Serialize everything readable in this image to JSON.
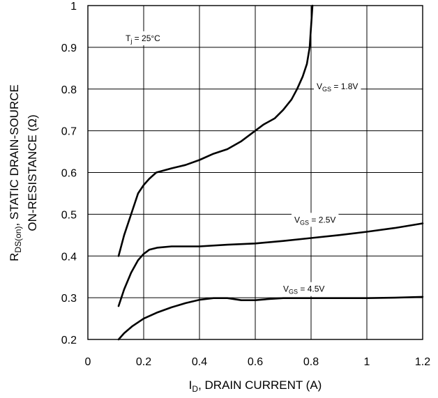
{
  "chart_data": {
    "type": "line",
    "xlabel": {
      "main": "I",
      "sub": "D",
      "rest": ", DRAIN CURRENT (A)"
    },
    "ylabel": {
      "line1_main": "R",
      "line1_sub": "DS(on)",
      "line1_rest": ", STATIC DRAIN-SOURCE",
      "line2": "ON-RESISTANCE (Ω)"
    },
    "xlim": [
      0,
      1.2
    ],
    "ylim": [
      0.2,
      1.0
    ],
    "xticks": [
      "0",
      "0.2",
      "0.4",
      "0.6",
      "0.8",
      "1",
      "1.2"
    ],
    "yticks": [
      "0.2",
      "0.3",
      "0.4",
      "0.5",
      "0.6",
      "0.7",
      "0.8",
      "0.9",
      "1"
    ],
    "grid": true,
    "annotations": [
      {
        "main": "T",
        "sub": "j",
        "rest": " = 25°C"
      }
    ],
    "series": [
      {
        "label": {
          "main": "V",
          "sub": "GS",
          "rest": " = 1.8V"
        },
        "points": [
          [
            0.11,
            0.4
          ],
          [
            0.13,
            0.45
          ],
          [
            0.155,
            0.5
          ],
          [
            0.18,
            0.55
          ],
          [
            0.2,
            0.57
          ],
          [
            0.22,
            0.585
          ],
          [
            0.245,
            0.6
          ],
          [
            0.3,
            0.61
          ],
          [
            0.35,
            0.618
          ],
          [
            0.4,
            0.63
          ],
          [
            0.45,
            0.645
          ],
          [
            0.5,
            0.656
          ],
          [
            0.55,
            0.675
          ],
          [
            0.6,
            0.7
          ],
          [
            0.63,
            0.715
          ],
          [
            0.67,
            0.73
          ],
          [
            0.7,
            0.75
          ],
          [
            0.73,
            0.775
          ],
          [
            0.75,
            0.8
          ],
          [
            0.77,
            0.83
          ],
          [
            0.785,
            0.86
          ],
          [
            0.795,
            0.9
          ],
          [
            0.8,
            0.95
          ],
          [
            0.805,
            1.0
          ]
        ]
      },
      {
        "label": {
          "main": "V",
          "sub": "GS",
          "rest": " = 2.5V"
        },
        "points": [
          [
            0.11,
            0.28
          ],
          [
            0.13,
            0.32
          ],
          [
            0.155,
            0.36
          ],
          [
            0.18,
            0.39
          ],
          [
            0.2,
            0.405
          ],
          [
            0.22,
            0.415
          ],
          [
            0.25,
            0.42
          ],
          [
            0.3,
            0.423
          ],
          [
            0.4,
            0.423
          ],
          [
            0.5,
            0.427
          ],
          [
            0.6,
            0.43
          ],
          [
            0.7,
            0.436
          ],
          [
            0.8,
            0.443
          ],
          [
            0.9,
            0.45
          ],
          [
            1.0,
            0.458
          ],
          [
            1.1,
            0.467
          ],
          [
            1.2,
            0.478
          ]
        ]
      },
      {
        "label": {
          "main": "V",
          "sub": "GS",
          "rest": " = 4.5V"
        },
        "points": [
          [
            0.11,
            0.2
          ],
          [
            0.13,
            0.215
          ],
          [
            0.16,
            0.232
          ],
          [
            0.2,
            0.25
          ],
          [
            0.25,
            0.265
          ],
          [
            0.3,
            0.277
          ],
          [
            0.35,
            0.287
          ],
          [
            0.4,
            0.295
          ],
          [
            0.45,
            0.299
          ],
          [
            0.5,
            0.299
          ],
          [
            0.55,
            0.294
          ],
          [
            0.6,
            0.294
          ],
          [
            0.65,
            0.297
          ],
          [
            0.7,
            0.299
          ],
          [
            0.8,
            0.299
          ],
          [
            0.9,
            0.299
          ],
          [
            1.0,
            0.299
          ],
          [
            1.1,
            0.3
          ],
          [
            1.2,
            0.302
          ]
        ]
      }
    ]
  }
}
